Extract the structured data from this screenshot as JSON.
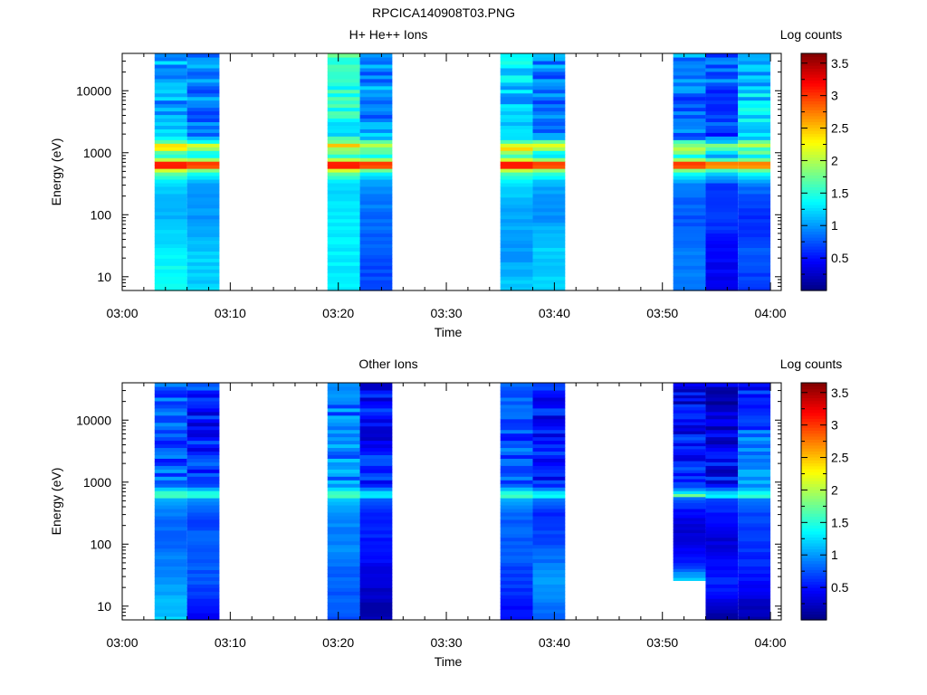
{
  "page_title": "RPCICA140908T03.PNG",
  "chart_data": [
    {
      "type": "heatmap",
      "title": "H+ He++ Ions",
      "xlabel": "Time",
      "ylabel": "Energy (eV)",
      "y_scale": "log",
      "ylim": [
        6,
        40000
      ],
      "y_ticks": [
        10,
        100,
        1000,
        10000
      ],
      "y_tick_labels": [
        "10",
        "100",
        "1000",
        "10000"
      ],
      "x_range": [
        "03:00",
        "04:01"
      ],
      "x_tick_labels": [
        "03:00",
        "03:10",
        "03:20",
        "03:30",
        "03:40",
        "03:50",
        "04:00"
      ],
      "colorbar": {
        "label": "Log counts",
        "range": [
          0,
          3.65
        ],
        "ticks": [
          0.5,
          1,
          1.5,
          2,
          2.5,
          3,
          3.5
        ],
        "tick_labels": [
          "0.5",
          "1",
          "1.5",
          "2",
          "2.5",
          "3",
          "3.5"
        ]
      },
      "columns": [
        {
          "start": "03:03",
          "end": "03:06",
          "profile": [
            [
              6,
              1.5
            ],
            [
              25,
              1.3
            ],
            [
              90,
              1.1
            ],
            [
              300,
              1.15
            ],
            [
              500,
              1.8
            ],
            [
              560,
              2.6
            ],
            [
              640,
              3.6
            ],
            [
              850,
              1.4
            ],
            [
              1300,
              2.4
            ],
            [
              1800,
              1.25
            ],
            [
              5000,
              1.05
            ],
            [
              40000,
              1.1
            ]
          ]
        },
        {
          "start": "03:06",
          "end": "03:09",
          "profile": [
            [
              6,
              1.2
            ],
            [
              25,
              1.2
            ],
            [
              90,
              1.0
            ],
            [
              300,
              1.0
            ],
            [
              500,
              1.5
            ],
            [
              560,
              2.3
            ],
            [
              640,
              3.5
            ],
            [
              850,
              1.3
            ],
            [
              1300,
              2.1
            ],
            [
              1800,
              1.0
            ],
            [
              5000,
              0.9
            ],
            [
              40000,
              1.0
            ]
          ]
        },
        {
          "start": "03:19",
          "end": "03:22",
          "profile": [
            [
              6,
              1.35
            ],
            [
              25,
              1.3
            ],
            [
              90,
              1.3
            ],
            [
              300,
              1.2
            ],
            [
              500,
              1.8
            ],
            [
              560,
              2.6
            ],
            [
              640,
              3.6
            ],
            [
              850,
              1.4
            ],
            [
              1300,
              2.3
            ],
            [
              1800,
              1.35
            ],
            [
              5000,
              1.45
            ],
            [
              40000,
              1.6
            ]
          ]
        },
        {
          "start": "03:22",
          "end": "03:25",
          "profile": [
            [
              6,
              0.7
            ],
            [
              25,
              0.75
            ],
            [
              90,
              0.85
            ],
            [
              300,
              0.95
            ],
            [
              500,
              1.4
            ],
            [
              560,
              2.3
            ],
            [
              640,
              3.5
            ],
            [
              850,
              1.3
            ],
            [
              1300,
              2.1
            ],
            [
              1800,
              1.05
            ],
            [
              5000,
              0.95
            ],
            [
              40000,
              1.0
            ]
          ]
        },
        {
          "start": "03:35",
          "end": "03:38",
          "profile": [
            [
              6,
              1.2
            ],
            [
              25,
              1.0
            ],
            [
              90,
              1.05
            ],
            [
              300,
              1.2
            ],
            [
              500,
              1.7
            ],
            [
              560,
              2.6
            ],
            [
              640,
              3.6
            ],
            [
              850,
              1.5
            ],
            [
              1300,
              2.4
            ],
            [
              1800,
              1.3
            ],
            [
              5000,
              1.1
            ],
            [
              40000,
              1.4
            ]
          ]
        },
        {
          "start": "03:38",
          "end": "03:41",
          "profile": [
            [
              6,
              1.2
            ],
            [
              25,
              1.2
            ],
            [
              90,
              1.0
            ],
            [
              300,
              1.05
            ],
            [
              500,
              1.6
            ],
            [
              560,
              2.3
            ],
            [
              640,
              3.5
            ],
            [
              850,
              1.2
            ],
            [
              1300,
              2.0
            ],
            [
              1800,
              0.95
            ],
            [
              5000,
              0.85
            ],
            [
              40000,
              0.95
            ]
          ]
        },
        {
          "start": "03:51",
          "end": "03:54",
          "profile": [
            [
              6,
              0.85
            ],
            [
              25,
              0.9
            ],
            [
              90,
              0.75
            ],
            [
              300,
              0.9
            ],
            [
              500,
              1.5
            ],
            [
              560,
              2.3
            ],
            [
              640,
              3.5
            ],
            [
              850,
              1.3
            ],
            [
              1300,
              2.0
            ],
            [
              1800,
              0.9
            ],
            [
              5000,
              0.8
            ],
            [
              40000,
              0.95
            ]
          ]
        },
        {
          "start": "03:54",
          "end": "03:57",
          "profile": [
            [
              6,
              0.4
            ],
            [
              25,
              0.45
            ],
            [
              90,
              0.7
            ],
            [
              300,
              0.65
            ],
            [
              500,
              1.3
            ],
            [
              560,
              2.0
            ],
            [
              640,
              3.3
            ],
            [
              850,
              0.9
            ],
            [
              1300,
              1.8
            ],
            [
              1800,
              0.65
            ],
            [
              5000,
              0.7
            ],
            [
              40000,
              0.85
            ]
          ]
        },
        {
          "start": "03:57",
          "end": "04:00",
          "profile": [
            [
              6,
              0.65
            ],
            [
              25,
              0.75
            ],
            [
              90,
              0.6
            ],
            [
              300,
              0.85
            ],
            [
              500,
              1.5
            ],
            [
              560,
              2.1
            ],
            [
              640,
              3.2
            ],
            [
              850,
              1.2
            ],
            [
              1300,
              2.0
            ],
            [
              1800,
              1.1
            ],
            [
              5000,
              1.25
            ],
            [
              40000,
              1.0
            ]
          ]
        }
      ]
    },
    {
      "type": "heatmap",
      "title": "Other Ions",
      "xlabel": "Time",
      "ylabel": "Energy (eV)",
      "y_scale": "log",
      "ylim": [
        6,
        40000
      ],
      "y_ticks": [
        10,
        100,
        1000,
        10000
      ],
      "y_tick_labels": [
        "10",
        "100",
        "1000",
        "10000"
      ],
      "x_range": [
        "03:00",
        "04:01"
      ],
      "x_tick_labels": [
        "03:00",
        "03:10",
        "03:20",
        "03:30",
        "03:40",
        "03:50",
        "04:00"
      ],
      "colorbar": {
        "label": "Log counts",
        "range": [
          0,
          3.65
        ],
        "ticks": [
          0.5,
          1,
          1.5,
          2,
          2.5,
          3,
          3.5
        ],
        "tick_labels": [
          "0.5",
          "1",
          "1.5",
          "2",
          "2.5",
          "3",
          "3.5"
        ]
      },
      "columns": [
        {
          "start": "03:03",
          "end": "03:06",
          "profile": [
            [
              6,
              1.2
            ],
            [
              25,
              1.0
            ],
            [
              90,
              0.85
            ],
            [
              300,
              0.85
            ],
            [
              550,
              1.1
            ],
            [
              620,
              1.8
            ],
            [
              700,
              1.5
            ],
            [
              900,
              0.8
            ],
            [
              5000,
              0.7
            ],
            [
              40000,
              0.8
            ]
          ]
        },
        {
          "start": "03:06",
          "end": "03:09",
          "profile": [
            [
              6,
              0.35
            ],
            [
              25,
              0.75
            ],
            [
              90,
              0.8
            ],
            [
              300,
              0.7
            ],
            [
              550,
              1.0
            ],
            [
              620,
              1.7
            ],
            [
              700,
              1.4
            ],
            [
              900,
              0.7
            ],
            [
              5000,
              0.5
            ],
            [
              40000,
              0.6
            ]
          ]
        },
        {
          "start": "03:19",
          "end": "03:22",
          "profile": [
            [
              6,
              0.75
            ],
            [
              25,
              0.8
            ],
            [
              90,
              0.95
            ],
            [
              300,
              0.9
            ],
            [
              550,
              1.2
            ],
            [
              620,
              1.8
            ],
            [
              700,
              1.5
            ],
            [
              900,
              0.95
            ],
            [
              5000,
              0.9
            ],
            [
              40000,
              0.85
            ]
          ]
        },
        {
          "start": "03:22",
          "end": "03:25",
          "profile": [
            [
              6,
              0.15
            ],
            [
              25,
              0.3
            ],
            [
              90,
              0.55
            ],
            [
              300,
              0.55
            ],
            [
              550,
              0.8
            ],
            [
              620,
              1.5
            ],
            [
              700,
              1.2
            ],
            [
              900,
              0.55
            ],
            [
              5000,
              0.5
            ],
            [
              40000,
              0.45
            ]
          ]
        },
        {
          "start": "03:35",
          "end": "03:38",
          "profile": [
            [
              6,
              0.45
            ],
            [
              25,
              0.65
            ],
            [
              90,
              0.8
            ],
            [
              300,
              0.8
            ],
            [
              550,
              1.1
            ],
            [
              620,
              1.8
            ],
            [
              700,
              1.4
            ],
            [
              900,
              0.8
            ],
            [
              5000,
              0.7
            ],
            [
              40000,
              0.75
            ]
          ]
        },
        {
          "start": "03:38",
          "end": "03:41",
          "profile": [
            [
              6,
              0.8
            ],
            [
              25,
              1.0
            ],
            [
              90,
              0.75
            ],
            [
              300,
              0.6
            ],
            [
              550,
              0.9
            ],
            [
              620,
              1.6
            ],
            [
              700,
              1.2
            ],
            [
              900,
              0.55
            ],
            [
              5000,
              0.45
            ],
            [
              40000,
              0.55
            ]
          ]
        },
        {
          "start": "03:51",
          "end": "03:54",
          "profile": [
            [
              26,
              1.2
            ],
            [
              50,
              0.55
            ],
            [
              90,
              0.4
            ],
            [
              150,
              0.3
            ],
            [
              300,
              0.4
            ],
            [
              550,
              0.8
            ],
            [
              620,
              1.8
            ],
            [
              700,
              1.2
            ],
            [
              900,
              0.6
            ],
            [
              5000,
              0.5
            ],
            [
              40000,
              0.35
            ]
          ]
        },
        {
          "start": "03:54",
          "end": "03:57",
          "profile": [
            [
              6,
              0.1
            ],
            [
              25,
              0.6
            ],
            [
              90,
              0.35
            ],
            [
              150,
              0.3
            ],
            [
              300,
              0.5
            ],
            [
              550,
              0.7
            ],
            [
              620,
              1.6
            ],
            [
              700,
              1.1
            ],
            [
              900,
              0.5
            ],
            [
              5000,
              0.3
            ],
            [
              40000,
              0.3
            ]
          ]
        },
        {
          "start": "03:57",
          "end": "04:00",
          "profile": [
            [
              6,
              0.1
            ],
            [
              25,
              0.5
            ],
            [
              90,
              0.65
            ],
            [
              200,
              0.65
            ],
            [
              300,
              0.7
            ],
            [
              550,
              0.9
            ],
            [
              620,
              1.8
            ],
            [
              700,
              1.3
            ],
            [
              900,
              0.9
            ],
            [
              5000,
              0.8
            ],
            [
              40000,
              0.5
            ]
          ]
        }
      ]
    }
  ]
}
